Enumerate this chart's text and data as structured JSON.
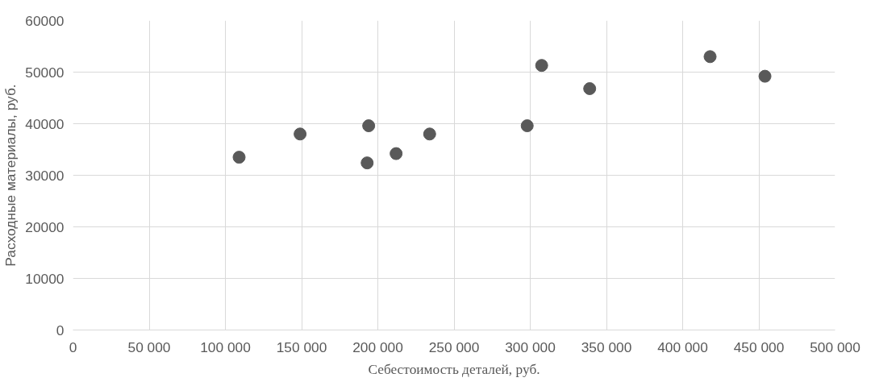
{
  "chart_data": {
    "type": "scatter",
    "xlabel": "Себестоимость деталей, руб.",
    "ylabel": "Расходные материалы, руб.",
    "x": [
      109000,
      149000,
      194000,
      193000,
      212000,
      234000,
      298000,
      307500,
      339000,
      418000,
      454000
    ],
    "series": [
      {
        "color": "#595959",
        "values": [
          33500,
          38000,
          39600,
          32400,
          34200,
          38000,
          39600,
          51300,
          46800,
          53000,
          49200
        ]
      }
    ],
    "xlim": [
      0,
      500000
    ],
    "xticks": [
      0,
      {
        "value": 50000,
        "label": "50 000"
      },
      {
        "value": 100000,
        "label": "100 000"
      },
      {
        "value": 150000,
        "label": "150 000"
      },
      {
        "value": 200000,
        "label": "200 000"
      },
      {
        "value": 250000,
        "label": "250 000"
      },
      {
        "value": 300000,
        "label": "300 000"
      },
      {
        "value": 350000,
        "label": "350 000"
      },
      {
        "value": 400000,
        "label": "400 000"
      },
      {
        "value": 450000,
        "label": "450 000"
      },
      {
        "value": 500000,
        "label": "500 000"
      }
    ],
    "ylim": [
      0,
      60000
    ],
    "yticks": [
      0,
      10000,
      20000,
      30000,
      40000,
      50000,
      60000
    ],
    "grid": true,
    "marker": "circle"
  }
}
